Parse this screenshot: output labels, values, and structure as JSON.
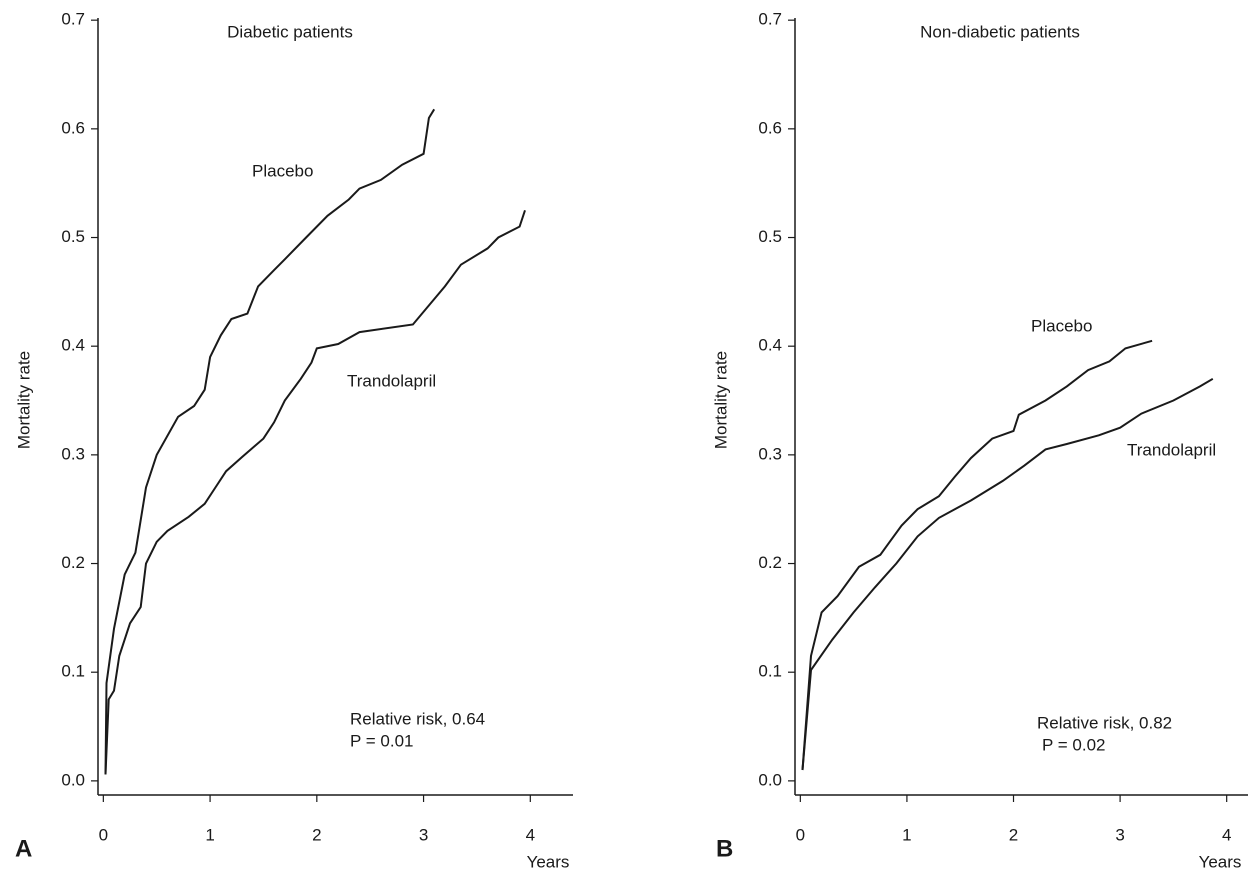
{
  "chart_data": [
    {
      "type": "line",
      "panel_label": "A",
      "title": "Diabetic patients",
      "xlabel": "Years",
      "ylabel": "Mortality rate",
      "xlim": [
        -0.05,
        4.4
      ],
      "xticks": [
        0,
        1,
        2,
        3,
        4
      ],
      "ylim": [
        -0.013,
        0.702
      ],
      "yticks": [
        {
          "value": 0,
          "label": "0.0"
        },
        0.1,
        0.2,
        0.3,
        0.4,
        0.5,
        0.6,
        0.7
      ],
      "series": [
        {
          "name": "Placebo",
          "color": "#1a1a1a",
          "x": [
            0.02,
            0.03,
            0.1,
            0.2,
            0.3,
            0.4,
            0.5,
            0.7,
            0.85,
            0.95,
            1.0,
            1.1,
            1.2,
            1.35,
            1.45,
            1.6,
            1.7,
            1.9,
            2.1,
            2.3,
            2.4,
            2.6,
            2.8,
            3.0,
            3.05,
            3.1
          ],
          "values": [
            0.006,
            0.09,
            0.14,
            0.19,
            0.21,
            0.27,
            0.3,
            0.335,
            0.345,
            0.36,
            0.39,
            0.41,
            0.425,
            0.43,
            0.455,
            0.47,
            0.48,
            0.5,
            0.52,
            0.535,
            0.545,
            0.553,
            0.567,
            0.577,
            0.61,
            0.618
          ]
        },
        {
          "name": "Trandolapril",
          "color": "#1a1a1a",
          "x": [
            0.02,
            0.05,
            0.1,
            0.15,
            0.25,
            0.35,
            0.4,
            0.5,
            0.6,
            0.8,
            0.95,
            1.05,
            1.15,
            1.3,
            1.5,
            1.6,
            1.7,
            1.85,
            1.95,
            2.0,
            2.2,
            2.4,
            2.9,
            3.2,
            3.35,
            3.6,
            3.7,
            3.9,
            3.95
          ],
          "values": [
            0.006,
            0.075,
            0.083,
            0.115,
            0.145,
            0.16,
            0.2,
            0.22,
            0.23,
            0.243,
            0.255,
            0.27,
            0.285,
            0.298,
            0.315,
            0.33,
            0.35,
            0.37,
            0.385,
            0.398,
            0.402,
            0.413,
            0.42,
            0.455,
            0.475,
            0.49,
            0.5,
            0.51,
            0.525
          ]
        }
      ],
      "annotations": [
        "Relative risk, 0.64",
        "P = 0.01"
      ]
    },
    {
      "type": "line",
      "panel_label": "B",
      "title": "Non-diabetic patients",
      "xlabel": "Years",
      "ylabel": "Mortality rate",
      "xlim": [
        -0.05,
        4.2
      ],
      "xticks": [
        0,
        1,
        2,
        3,
        4
      ],
      "ylim": [
        -0.013,
        0.702
      ],
      "yticks": [
        {
          "value": 0,
          "label": "0.0"
        },
        0.1,
        0.2,
        0.3,
        0.4,
        0.5,
        0.6,
        0.7
      ],
      "series": [
        {
          "name": "Placebo",
          "color": "#1a1a1a",
          "x": [
            0.02,
            0.1,
            0.2,
            0.35,
            0.55,
            0.75,
            0.95,
            1.1,
            1.3,
            1.45,
            1.6,
            1.8,
            2.0,
            2.05,
            2.3,
            2.5,
            2.7,
            2.9,
            3.05,
            3.3
          ],
          "values": [
            0.01,
            0.115,
            0.155,
            0.17,
            0.197,
            0.208,
            0.235,
            0.25,
            0.262,
            0.28,
            0.297,
            0.315,
            0.322,
            0.337,
            0.35,
            0.363,
            0.378,
            0.386,
            0.398,
            0.405
          ]
        },
        {
          "name": "Trandolapril",
          "color": "#1a1a1a",
          "x": [
            0.02,
            0.1,
            0.3,
            0.5,
            0.7,
            0.9,
            1.1,
            1.3,
            1.6,
            1.9,
            2.1,
            2.3,
            2.5,
            2.8,
            3.0,
            3.2,
            3.5,
            3.75,
            3.87
          ],
          "values": [
            0.01,
            0.102,
            0.13,
            0.155,
            0.178,
            0.2,
            0.225,
            0.242,
            0.258,
            0.276,
            0.29,
            0.305,
            0.31,
            0.318,
            0.325,
            0.338,
            0.35,
            0.363,
            0.37
          ]
        }
      ],
      "annotations": [
        "Relative risk, 0.82",
        "P = 0.02"
      ]
    }
  ]
}
